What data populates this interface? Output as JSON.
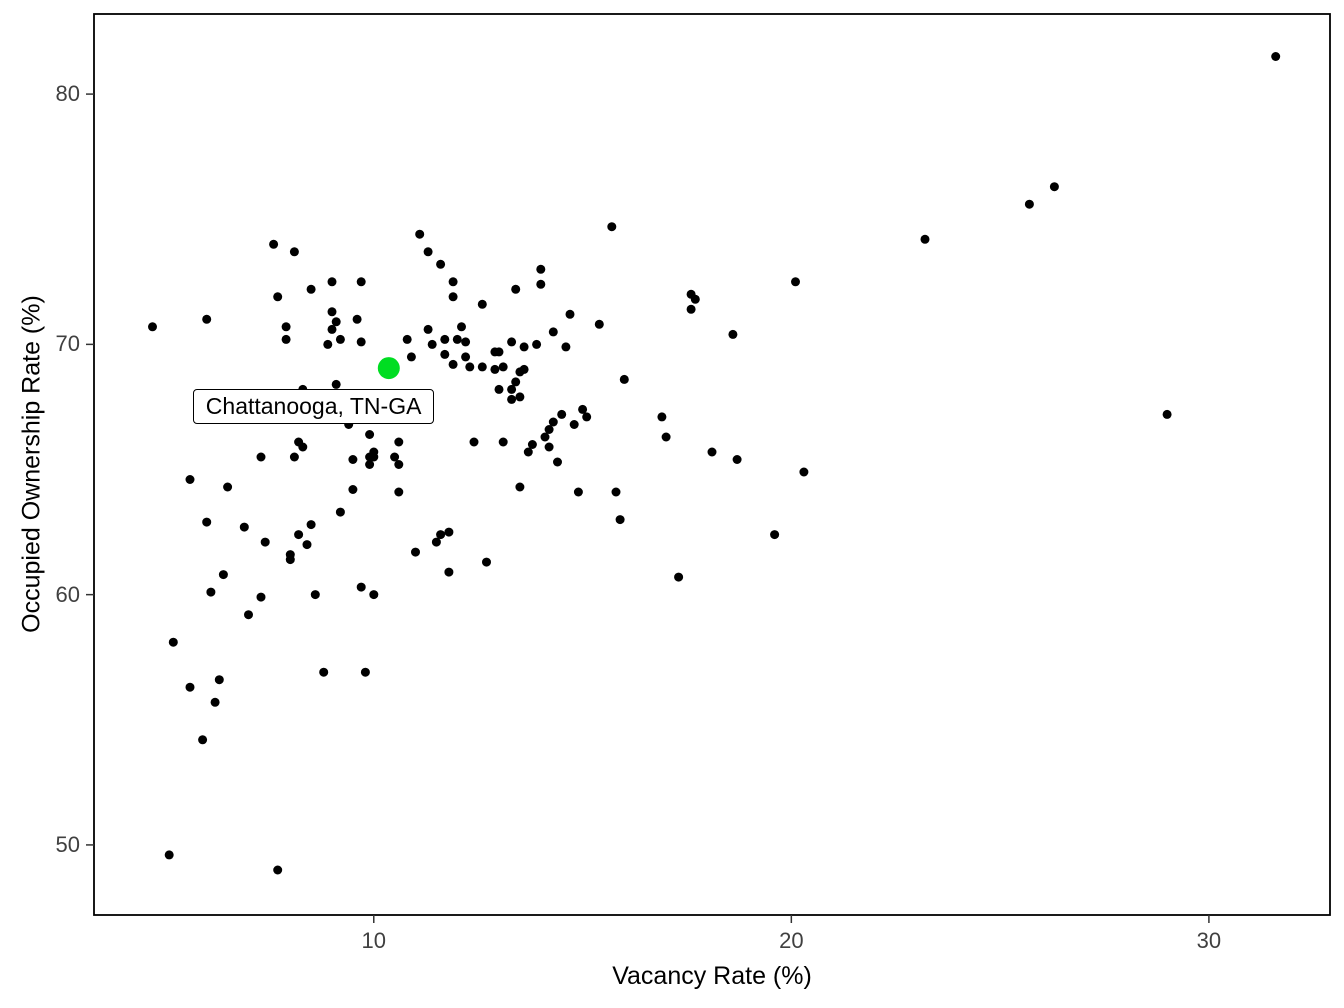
{
  "figure": {
    "background": "#ffffff",
    "panel_border_color": "#000000",
    "tick_color": "#333333",
    "tick_label_color": "#404040"
  },
  "chart_data": {
    "type": "scatter",
    "title": "",
    "xlabel": "Vacancy Rate (%)",
    "ylabel": "Occupied Ownership Rate (%)",
    "x_ticks": [
      10,
      20,
      30
    ],
    "y_ticks": [
      50,
      60,
      70,
      80
    ],
    "xlim": [
      3.3,
      32.9
    ],
    "ylim": [
      47.2,
      83.2
    ],
    "grid": false,
    "legend": false,
    "point_color": "#000000",
    "point_radius": 4.5,
    "highlight": {
      "label": "Chattanooga, TN-GA",
      "x": 10.36,
      "y": 69.05,
      "color": "#00DD22",
      "radius": 11
    },
    "points": [
      [
        31.6,
        81.5
      ],
      [
        26.3,
        76.3
      ],
      [
        25.7,
        75.6
      ],
      [
        23.2,
        74.2
      ],
      [
        15.7,
        74.7
      ],
      [
        7.6,
        74.0
      ],
      [
        8.1,
        73.7
      ],
      [
        11.1,
        74.4
      ],
      [
        11.3,
        73.7
      ],
      [
        11.6,
        73.2
      ],
      [
        11.9,
        72.5
      ],
      [
        11.9,
        71.9
      ],
      [
        14.0,
        73.0
      ],
      [
        14.0,
        72.4
      ],
      [
        9.0,
        72.5
      ],
      [
        9.7,
        72.5
      ],
      [
        8.5,
        72.2
      ],
      [
        13.4,
        72.2
      ],
      [
        7.7,
        71.9
      ],
      [
        12.6,
        71.6
      ],
      [
        17.6,
        72.0
      ],
      [
        17.7,
        71.8
      ],
      [
        17.6,
        71.4
      ],
      [
        9.6,
        71.0
      ],
      [
        9.0,
        71.3
      ],
      [
        9.1,
        70.9
      ],
      [
        9.0,
        70.6
      ],
      [
        15.4,
        70.8
      ],
      [
        4.7,
        70.7
      ],
      [
        6.0,
        71.0
      ],
      [
        11.3,
        70.6
      ],
      [
        18.6,
        70.4
      ],
      [
        11.7,
        70.2
      ],
      [
        9.2,
        70.2
      ],
      [
        9.7,
        70.1
      ],
      [
        12.1,
        70.7
      ],
      [
        12.2,
        70.1
      ],
      [
        7.9,
        70.7
      ],
      [
        7.9,
        70.2
      ],
      [
        13.9,
        70.0
      ],
      [
        14.3,
        70.5
      ],
      [
        12.9,
        69.7
      ],
      [
        11.7,
        69.6
      ],
      [
        11.4,
        70.0
      ],
      [
        10.8,
        70.2
      ],
      [
        14.6,
        69.9
      ],
      [
        8.9,
        70.0
      ],
      [
        13.0,
        69.7
      ],
      [
        13.3,
        70.1
      ],
      [
        14.7,
        71.2
      ],
      [
        29.0,
        67.2
      ],
      [
        20.1,
        72.5
      ],
      [
        10.4,
        67.6
      ],
      [
        12.0,
        70.2
      ],
      [
        11.9,
        69.2
      ],
      [
        12.2,
        69.5
      ],
      [
        12.3,
        69.1
      ],
      [
        12.6,
        69.1
      ],
      [
        12.9,
        69.0
      ],
      [
        13.1,
        69.1
      ],
      [
        13.6,
        69.0
      ],
      [
        13.5,
        68.9
      ],
      [
        13.6,
        69.9
      ],
      [
        13.4,
        68.5
      ],
      [
        13.3,
        68.2
      ],
      [
        13.0,
        68.2
      ],
      [
        8.3,
        68.2
      ],
      [
        9.1,
        68.4
      ],
      [
        16.0,
        68.6
      ],
      [
        13.5,
        67.9
      ],
      [
        13.3,
        67.8
      ],
      [
        15.0,
        67.4
      ],
      [
        15.1,
        67.1
      ],
      [
        14.5,
        67.2
      ],
      [
        14.3,
        66.9
      ],
      [
        14.8,
        66.8
      ],
      [
        9.4,
        66.8
      ],
      [
        9.9,
        66.4
      ],
      [
        14.1,
        66.3
      ],
      [
        14.2,
        66.6
      ],
      [
        14.2,
        65.9
      ],
      [
        16.9,
        67.1
      ],
      [
        17.0,
        66.3
      ],
      [
        12.4,
        66.1
      ],
      [
        13.1,
        66.1
      ],
      [
        13.8,
        66.0
      ],
      [
        13.7,
        65.7
      ],
      [
        8.2,
        66.1
      ],
      [
        8.3,
        65.9
      ],
      [
        14.4,
        65.3
      ],
      [
        18.1,
        65.7
      ],
      [
        18.7,
        65.4
      ],
      [
        7.3,
        65.5
      ],
      [
        8.1,
        65.5
      ],
      [
        9.5,
        65.4
      ],
      [
        9.9,
        65.5
      ],
      [
        9.9,
        65.2
      ],
      [
        10.0,
        65.7
      ],
      [
        10.0,
        65.5
      ],
      [
        10.5,
        65.5
      ],
      [
        10.6,
        66.1
      ],
      [
        10.6,
        65.2
      ],
      [
        13.5,
        64.3
      ],
      [
        14.9,
        64.1
      ],
      [
        15.8,
        64.1
      ],
      [
        10.6,
        64.1
      ],
      [
        9.5,
        64.2
      ],
      [
        5.6,
        64.6
      ],
      [
        6.5,
        64.3
      ],
      [
        20.3,
        64.9
      ],
      [
        15.9,
        63.0
      ],
      [
        17.3,
        60.7
      ],
      [
        19.6,
        62.4
      ],
      [
        9.2,
        63.3
      ],
      [
        8.4,
        62.0
      ],
      [
        8.2,
        62.4
      ],
      [
        8.5,
        62.8
      ],
      [
        8.0,
        61.6
      ],
      [
        8.0,
        61.4
      ],
      [
        7.4,
        62.1
      ],
      [
        6.9,
        62.7
      ],
      [
        6.0,
        62.9
      ],
      [
        6.4,
        60.8
      ],
      [
        6.1,
        60.1
      ],
      [
        7.0,
        59.2
      ],
      [
        7.3,
        59.9
      ],
      [
        8.6,
        60.0
      ],
      [
        9.7,
        60.3
      ],
      [
        10.0,
        60.0
      ],
      [
        11.0,
        61.7
      ],
      [
        11.5,
        62.1
      ],
      [
        11.6,
        62.4
      ],
      [
        11.8,
        62.5
      ],
      [
        11.8,
        60.9
      ],
      [
        12.7,
        61.3
      ],
      [
        8.8,
        56.9
      ],
      [
        9.8,
        56.9
      ],
      [
        5.2,
        58.1
      ],
      [
        5.6,
        56.3
      ],
      [
        6.2,
        55.7
      ],
      [
        6.3,
        56.6
      ],
      [
        5.9,
        54.2
      ],
      [
        5.1,
        49.6
      ],
      [
        7.7,
        49.0
      ],
      [
        10.1,
        67.0
      ],
      [
        10.9,
        69.5
      ]
    ]
  }
}
